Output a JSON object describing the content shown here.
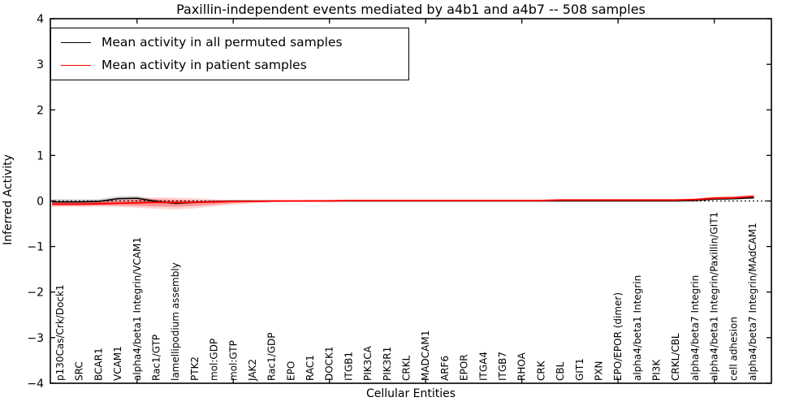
{
  "chart_data": {
    "type": "line",
    "title": "Paxillin-independent events mediated by a4b1 and a4b7 -- 508 samples",
    "xlabel": "Cellular Entities",
    "ylabel": "Inferred Activity",
    "ylim": [
      -4,
      4
    ],
    "y_tick_labels": [
      "4",
      "3",
      "2",
      "1",
      "0",
      "−1",
      "−2",
      "−3",
      "−4"
    ],
    "x_major_tick_indices": [
      4,
      9,
      14,
      19,
      24,
      29,
      34
    ],
    "zero_line": true,
    "grid": false,
    "legend_position": "upper left",
    "categories": [
      "p130Cas/Crk/Dock1",
      "SRC",
      "BCAR1",
      "VCAM1",
      "alpha4/beta1 Integrin/VCAM1",
      "Rac1/GTP",
      "lamellipodium assembly",
      "PTK2",
      "mol:GDP",
      "mol:GTP",
      "JAK2",
      "Rac1/GDP",
      "EPO",
      "RAC1",
      "DOCK1",
      "ITGB1",
      "PIK3CA",
      "PIK3R1",
      "CRKL",
      "MADCAM1",
      "ARF6",
      "EPOR",
      "ITGA4",
      "ITGB7",
      "RHOA",
      "CRK",
      "CBL",
      "GIT1",
      "PXN",
      "EPO/EPOR (dimer)",
      "alpha4/beta1 Integrin",
      "PI3K",
      "CRKL/CBL",
      "alpha4/beta7 Integrin",
      "alpha4/beta1 Integrin/Paxillin/GIT1",
      "cell adhesion",
      "alpha4/beta7 Integrin/MAdCAM1"
    ],
    "series": [
      {
        "name": "Mean activity in all permuted samples",
        "color": "#000000",
        "values": [
          -0.02,
          -0.02,
          -0.01,
          0.05,
          0.06,
          -0.01,
          -0.05,
          -0.03,
          -0.01,
          0,
          0,
          0,
          0,
          0,
          0,
          0,
          0,
          0,
          0,
          0,
          0,
          0,
          0,
          0,
          0,
          0,
          0,
          0,
          0,
          0,
          0,
          0,
          0,
          0.01,
          0.04,
          0.05,
          0.07
        ]
      },
      {
        "name": "Mean activity in patient samples",
        "color": "#ff0000",
        "values": [
          -0.07,
          -0.07,
          -0.06,
          -0.05,
          -0.04,
          -0.03,
          -0.03,
          -0.03,
          -0.02,
          -0.01,
          -0.01,
          0,
          0,
          0,
          0,
          0.01,
          0.01,
          0.01,
          0.01,
          0.01,
          0.01,
          0.01,
          0.01,
          0.01,
          0.01,
          0.01,
          0.02,
          0.02,
          0.02,
          0.02,
          0.02,
          0.02,
          0.02,
          0.03,
          0.06,
          0.07,
          0.1
        ]
      }
    ],
    "bands": [
      {
        "name": "permuted-std-band",
        "color": "rgba(0,0,0,0.18)",
        "upper": [
          0.04,
          0.035,
          0.04,
          0.1,
          0.11,
          0.03,
          -0.02,
          -0.01,
          0.0,
          0.01,
          0.01,
          0.01,
          0.01,
          0.01,
          0.01,
          0.01,
          0.01,
          0.01,
          0.01,
          0.01,
          0.01,
          0.01,
          0.01,
          0.01,
          0.01,
          0.01,
          0.01,
          0.01,
          0.01,
          0.01,
          0.01,
          0.01,
          0.01,
          0.02,
          0.05,
          0.065,
          0.09
        ],
        "lower": [
          -0.08,
          -0.075,
          -0.06,
          0.0,
          0.01,
          -0.05,
          -0.08,
          -0.05,
          -0.02,
          -0.01,
          -0.01,
          -0.01,
          -0.01,
          -0.01,
          -0.01,
          -0.01,
          -0.01,
          -0.01,
          -0.01,
          -0.01,
          -0.01,
          -0.01,
          -0.01,
          -0.01,
          -0.01,
          -0.01,
          -0.01,
          -0.01,
          -0.01,
          -0.01,
          -0.01,
          -0.01,
          -0.01,
          0.0,
          0.03,
          0.035,
          0.05
        ]
      },
      {
        "name": "patient-std-band-outer",
        "color": "rgba(255,0,0,0.16)",
        "upper": [
          0.0,
          0.0,
          0.01,
          0.03,
          0.07,
          0.08,
          0.075,
          0.06,
          0.04,
          0.02,
          0.015,
          0.01,
          0.01,
          0.025,
          0.025,
          0.025,
          0.025,
          0.025,
          0.025,
          0.025,
          0.025,
          0.025,
          0.025,
          0.025,
          0.025,
          0.025,
          0.035,
          0.035,
          0.035,
          0.035,
          0.035,
          0.035,
          0.035,
          0.06,
          0.1,
          0.115,
          0.135
        ],
        "lower": [
          -0.13,
          -0.13,
          -0.125,
          -0.13,
          -0.15,
          -0.17,
          -0.19,
          -0.16,
          -0.12,
          -0.08,
          -0.05,
          -0.03,
          -0.02,
          -0.01,
          -0.01,
          -0.01,
          -0.01,
          -0.01,
          -0.01,
          -0.01,
          -0.01,
          -0.01,
          -0.01,
          -0.01,
          -0.01,
          -0.01,
          -0.005,
          -0.005,
          -0.005,
          -0.005,
          -0.005,
          -0.005,
          -0.005,
          0.005,
          0.02,
          0.03,
          0.05
        ]
      },
      {
        "name": "patient-std-band-inner",
        "color": "rgba(255,0,0,0.30)",
        "upper": [
          -0.02,
          -0.02,
          -0.01,
          0.0,
          0.03,
          0.04,
          0.03,
          0.02,
          0.01,
          0.01,
          0.01,
          0.01,
          0.01,
          0.02,
          0.02,
          0.02,
          0.02,
          0.02,
          0.02,
          0.02,
          0.02,
          0.02,
          0.02,
          0.02,
          0.02,
          0.02,
          0.03,
          0.03,
          0.03,
          0.03,
          0.03,
          0.03,
          0.03,
          0.045,
          0.08,
          0.09,
          0.115
        ],
        "lower": [
          -0.105,
          -0.105,
          -0.1,
          -0.1,
          -0.11,
          -0.12,
          -0.13,
          -0.11,
          -0.08,
          -0.05,
          -0.03,
          -0.02,
          -0.015,
          -0.005,
          -0.005,
          -0.005,
          -0.005,
          -0.005,
          -0.005,
          -0.005,
          -0.005,
          -0.005,
          -0.005,
          -0.005,
          -0.005,
          -0.005,
          0.005,
          0.005,
          0.005,
          0.005,
          0.005,
          0.005,
          0.005,
          0.015,
          0.04,
          0.05,
          0.075
        ]
      }
    ]
  }
}
